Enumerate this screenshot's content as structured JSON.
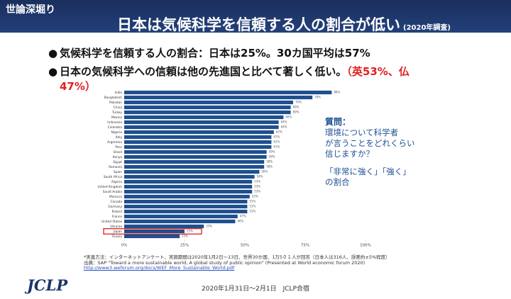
{
  "header": {
    "subtitle": "世論深堀り",
    "title": "日本は気候科学を信頼する人の割合が低い",
    "note": "(2020年調査)"
  },
  "bullets": [
    {
      "text": "気候科学を信頼する人の割合：日本は25%。30カ国平均は57%"
    },
    {
      "text": "日本の気候科学への信頼は他の先進国と比べて著しく低い。",
      "highlight": "（英53%、仏47%）"
    }
  ],
  "chart_data": {
    "type": "hbar",
    "categories": [
      "India",
      "Bangladesh",
      "Pakistan",
      "China",
      "Turkey",
      "Mexico",
      "Indonesia",
      "Colombia",
      "Nigeria",
      "Italy",
      "Argentina",
      "Peru",
      "Brazil",
      "Kenya",
      "Egypt",
      "Romania",
      "Spain",
      "South Africa",
      "Algeria",
      "United Kingdom",
      "Saudi Arabia",
      "Morocco",
      "Canada",
      "Germany",
      "Poland",
      "France",
      "United States",
      "Ukraine",
      "Japan",
      "Russia"
    ],
    "values": [
      86,
      78,
      70,
      69,
      69,
      66,
      64,
      64,
      62,
      61,
      61,
      61,
      59,
      59,
      58,
      58,
      56,
      54,
      53,
      53,
      53,
      52,
      51,
      51,
      51,
      47,
      46,
      33,
      25,
      23
    ],
    "value_labels": [
      "86%",
      "78%",
      "70%",
      "69%",
      "69%",
      "66%",
      "64%",
      "64%",
      "62%",
      "61%",
      "61%",
      "61%",
      "59%",
      "59%",
      "58%",
      "58%",
      "56%",
      "54%",
      "53%",
      "53%",
      "53%",
      "52%",
      "51%",
      "51%",
      "51%",
      "47%",
      "46%",
      "33%",
      "25%",
      "23%"
    ],
    "color": "#1f4f8f",
    "xlim": [
      0,
      100
    ],
    "xticks": [
      {
        "value": 0,
        "label": "0%"
      },
      {
        "value": 25,
        "label": "25%"
      },
      {
        "value": 50,
        "label": "50%"
      },
      {
        "value": 75,
        "label": "75%"
      },
      {
        "value": 100,
        "label": "100%"
      }
    ],
    "highlight": "Japan",
    "highlight_color": "#e02020"
  },
  "question": {
    "title": "質問：",
    "lines": [
      "環境について科学者",
      "が言うことをどれくらい",
      "信じますか？"
    ],
    "measure": [
      "「非常に強く」「強く」",
      "の割合"
    ]
  },
  "footnote": {
    "method": "*実査方法：インターネットアンケート、実施期間は2020年1月2日～13日、世界30か国、1万5０１人が回答（日本人は316人、誤差約±5%程度）",
    "source": "出典：SAP \"Toward a more sustainable world, A global study of public opinion\" (Presented at World economic forum 2020)",
    "url": "http://www3.weforum.org/docs/WEF_More_Sustainable_World.pdf"
  },
  "footer": {
    "date": "2020年1月31日～2月1日　JCLP合宿",
    "logo": "JCLP"
  }
}
